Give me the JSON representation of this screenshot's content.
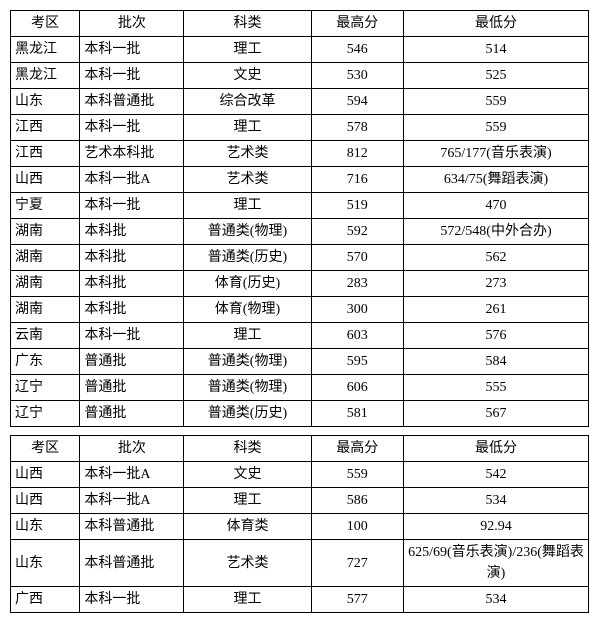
{
  "table1": {
    "columns": [
      "考区",
      "批次",
      "科类",
      "最高分",
      "最低分"
    ],
    "rows": [
      [
        "黑龙江",
        "本科一批",
        "理工",
        "546",
        "514"
      ],
      [
        "黑龙江",
        "本科一批",
        "文史",
        "530",
        "525"
      ],
      [
        "山东",
        "本科普通批",
        "综合改革",
        "594",
        "559"
      ],
      [
        "江西",
        "本科一批",
        "理工",
        "578",
        "559"
      ],
      [
        "江西",
        "艺术本科批",
        "艺术类",
        "812",
        "765/177(音乐表演)"
      ],
      [
        "山西",
        "本科一批A",
        "艺术类",
        "716",
        "634/75(舞蹈表演)"
      ],
      [
        "宁夏",
        "本科一批",
        "理工",
        "519",
        "470"
      ],
      [
        "湖南",
        "本科批",
        "普通类(物理)",
        "592",
        "572/548(中外合办)"
      ],
      [
        "湖南",
        "本科批",
        "普通类(历史)",
        "570",
        "562"
      ],
      [
        "湖南",
        "本科批",
        "体育(历史)",
        "283",
        "273"
      ],
      [
        "湖南",
        "本科批",
        "体育(物理)",
        "300",
        "261"
      ],
      [
        "云南",
        "本科一批",
        "理工",
        "603",
        "576"
      ],
      [
        "广东",
        "普通批",
        "普通类(物理)",
        "595",
        "584"
      ],
      [
        "辽宁",
        "普通批",
        "普通类(物理)",
        "606",
        "555"
      ],
      [
        "辽宁",
        "普通批",
        "普通类(历史)",
        "581",
        "567"
      ]
    ]
  },
  "table2": {
    "columns": [
      "考区",
      "批次",
      "科类",
      "最高分",
      "最低分"
    ],
    "rows": [
      [
        "山西",
        "本科一批A",
        "文史",
        "559",
        "542"
      ],
      [
        "山西",
        "本科一批A",
        "理工",
        "586",
        "534"
      ],
      [
        "山东",
        "本科普通批",
        "体育类",
        "100",
        "92.94"
      ],
      [
        "山东",
        "本科普通批",
        "艺术类",
        "727",
        "625/69(音乐表演)/236(舞蹈表演)"
      ],
      [
        "广西",
        "本科一批",
        "理工",
        "577",
        "534"
      ]
    ]
  }
}
